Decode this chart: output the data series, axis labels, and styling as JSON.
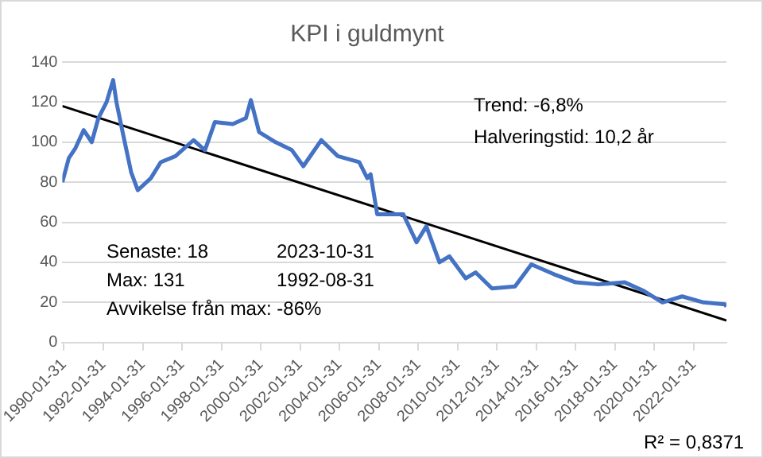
{
  "chart_data": {
    "type": "line",
    "title": "KPI i guldmynt",
    "series": [
      {
        "color": "#4472c4",
        "x": [
          "1990-01",
          "1990-05",
          "1990-09",
          "1991-02",
          "1991-07",
          "1991-11",
          "1992-04",
          "1992-08",
          "1992-10",
          "1993-02",
          "1993-07",
          "1993-11",
          "1994-07",
          "1995-01",
          "1995-10",
          "1996-09",
          "1997-04",
          "1997-10",
          "1998-09",
          "1999-05",
          "1999-08",
          "2000-01",
          "2000-11",
          "2001-09",
          "2002-04",
          "2003-03",
          "2004-01",
          "2005-02",
          "2005-07",
          "2005-09",
          "2006-01",
          "2007-05",
          "2008-01",
          "2008-07",
          "2009-03",
          "2009-09",
          "2010-07",
          "2011-01",
          "2011-11",
          "2013-01",
          "2013-11",
          "2015-01",
          "2016-02",
          "2017-04",
          "2018-08",
          "2019-07",
          "2020-07",
          "2021-07",
          "2022-08",
          "2023-09",
          "2023-10"
        ],
        "values": [
          80,
          92,
          97,
          106,
          100,
          112,
          120,
          131,
          120,
          104,
          85,
          76,
          82,
          90,
          93,
          101,
          96,
          110,
          109,
          112,
          121,
          105,
          100,
          96,
          88,
          101,
          93,
          90,
          82,
          84,
          64,
          64,
          50,
          58,
          40,
          43,
          32,
          35,
          27,
          28,
          39,
          34,
          30,
          29,
          30,
          26,
          20,
          23,
          20,
          19,
          18
        ]
      },
      {
        "type": "line",
        "color": "#000000",
        "x": [
          "1990-01",
          "2023-10"
        ],
        "values": [
          118,
          11
        ]
      }
    ],
    "xlim": [
      "1990-01",
      "2023-10"
    ],
    "xticks": [
      "1990-01-31",
      "1992-01-31",
      "1994-01-31",
      "1996-01-31",
      "1998-01-31",
      "2000-01-31",
      "2002-01-31",
      "2004-01-31",
      "2006-01-31",
      "2008-01-31",
      "2010-01-31",
      "2012-01-31",
      "2014-01-31",
      "2016-01-31",
      "2018-01-31",
      "2020-01-31",
      "2022-01-31"
    ],
    "ylim": [
      0,
      140
    ],
    "yticks": [
      0,
      20,
      40,
      60,
      80,
      100,
      120,
      140
    ],
    "grid": "y",
    "legend": false,
    "marker": "none",
    "line_style": "solid",
    "annotations": [
      "Trend: -6,8%",
      "Halveringstid: 10,2 år",
      "Senaste: 18",
      "2023-10-31",
      "Max: 131",
      "1992-08-31",
      "Avvikelse från max: -86%",
      "R² = 0,8371"
    ]
  }
}
